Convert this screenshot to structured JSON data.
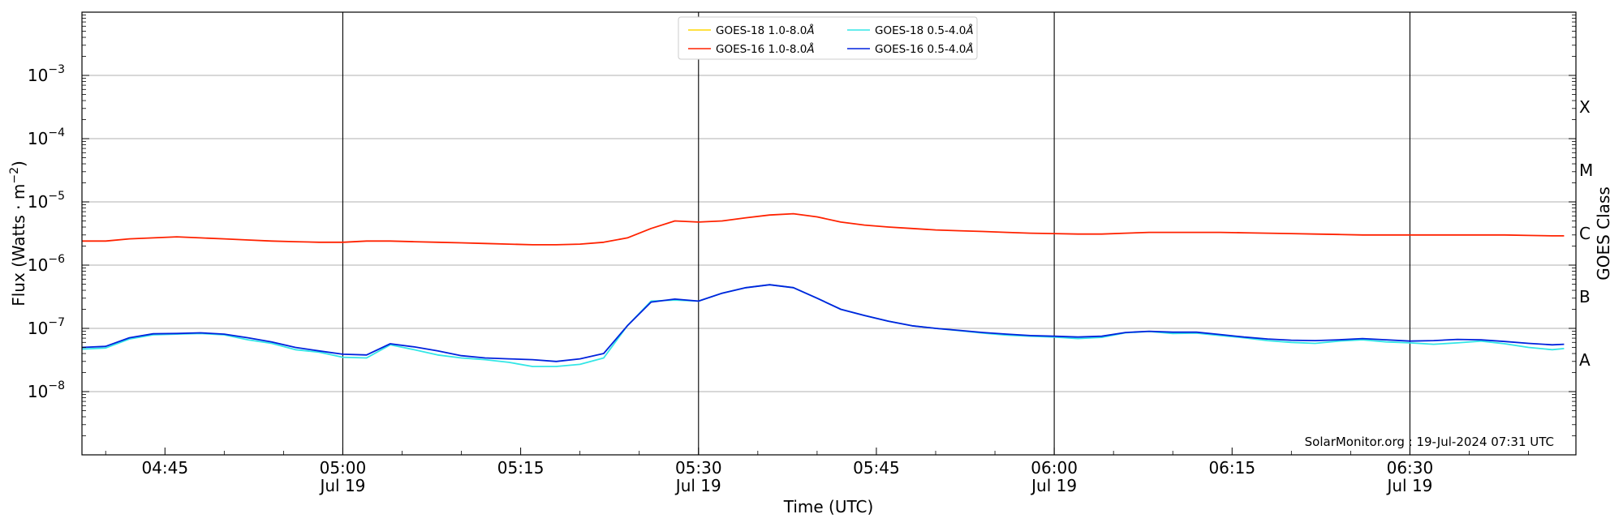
{
  "chart_data": {
    "type": "line",
    "ylabel_main": "Flux (Watts · m",
    "ylabel_sup": "−2",
    "ylabel_close": ")",
    "xlabel": "Time (UTC)",
    "right_label": "GOES Class",
    "y_scale": "log",
    "ylim": [
      1e-09,
      0.01
    ],
    "y_ticks": [
      {
        "value": 1e-08,
        "base": "10",
        "exp": "−8"
      },
      {
        "value": 1e-07,
        "base": "10",
        "exp": "−7"
      },
      {
        "value": 1e-06,
        "base": "10",
        "exp": "−6"
      },
      {
        "value": 1e-05,
        "base": "10",
        "exp": "−5"
      },
      {
        "value": 0.0001,
        "base": "10",
        "exp": "−4"
      },
      {
        "value": 0.001,
        "base": "10",
        "exp": "−3"
      }
    ],
    "xlim": [
      "04:38",
      "06:44"
    ],
    "x_ticks": [
      {
        "time": "04:45",
        "label": "04:45",
        "date": ""
      },
      {
        "time": "05:00",
        "label": "05:00",
        "date": "Jul 19"
      },
      {
        "time": "05:15",
        "label": "05:15",
        "date": ""
      },
      {
        "time": "05:30",
        "label": "05:30",
        "date": "Jul 19"
      },
      {
        "time": "05:45",
        "label": "05:45",
        "date": ""
      },
      {
        "time": "06:00",
        "label": "06:00",
        "date": "Jul 19"
      },
      {
        "time": "06:15",
        "label": "06:15",
        "date": ""
      },
      {
        "time": "06:30",
        "label": "06:30",
        "date": "Jul 19"
      }
    ],
    "vertical_lines": [
      "05:00",
      "05:30",
      "06:00",
      "06:30"
    ],
    "goes_classes": [
      {
        "label": "A",
        "value": 3.16e-08
      },
      {
        "label": "B",
        "value": 3.16e-07
      },
      {
        "label": "C",
        "value": 3.16e-06
      },
      {
        "label": "M",
        "value": 3.16e-05
      },
      {
        "label": "X",
        "value": 0.000316
      }
    ],
    "grid": "horizontal",
    "legend_position": "top-center",
    "annotation": "SolarMonitor.org : 19-Jul-2024 07:31 UTC",
    "series": [
      {
        "name": "GOES-18 1.0-8.0",
        "unit": "Å",
        "color": "#ffd700",
        "x": [],
        "y": []
      },
      {
        "name": "GOES-18 0.5-4.0",
        "unit": "Å",
        "color": "#33e6e6",
        "x": [
          "04:38",
          "04:40",
          "04:42",
          "04:44",
          "04:46",
          "04:48",
          "04:50",
          "04:52",
          "04:54",
          "04:56",
          "04:58",
          "05:00",
          "05:02",
          "05:04",
          "05:06",
          "05:08",
          "05:10",
          "05:12",
          "05:14",
          "05:16",
          "05:18",
          "05:20",
          "05:22",
          "05:24",
          "05:26",
          "05:28",
          "05:30",
          "05:32",
          "05:34",
          "05:36",
          "05:38",
          "05:40",
          "05:42",
          "05:44",
          "05:46",
          "05:48",
          "05:50",
          "05:52",
          "05:54",
          "05:56",
          "05:58",
          "06:00",
          "06:02",
          "06:04",
          "06:06",
          "06:08",
          "06:10",
          "06:12",
          "06:14",
          "06:16",
          "06:18",
          "06:20",
          "06:22",
          "06:24",
          "06:26",
          "06:28",
          "06:30",
          "06:32",
          "06:34",
          "06:36",
          "06:38",
          "06:40",
          "06:42",
          "06:43"
        ],
        "y": [
          4.7e-08,
          4.9e-08,
          6.8e-08,
          7.9e-08,
          8.1e-08,
          8.3e-08,
          7.9e-08,
          6.6e-08,
          5.8e-08,
          4.6e-08,
          4.2e-08,
          3.5e-08,
          3.4e-08,
          5.5e-08,
          4.6e-08,
          3.8e-08,
          3.4e-08,
          3.2e-08,
          2.9e-08,
          2.5e-08,
          2.5e-08,
          2.7e-08,
          3.4e-08,
          1.1e-07,
          2.7e-07,
          2.8e-07,
          2.7e-07,
          3.6e-07,
          4.4e-07,
          4.9e-07,
          4.4e-07,
          3e-07,
          2e-07,
          1.6e-07,
          1.3e-07,
          1.1e-07,
          1e-07,
          9.2e-08,
          8.4e-08,
          7.8e-08,
          7.5e-08,
          7.3e-08,
          6.9e-08,
          7.2e-08,
          8.5e-08,
          8.9e-08,
          8.3e-08,
          8.4e-08,
          7.7e-08,
          7.1e-08,
          6.4e-08,
          6e-08,
          5.8e-08,
          6.3e-08,
          6.6e-08,
          6.1e-08,
          5.9e-08,
          5.6e-08,
          5.9e-08,
          6.3e-08,
          5.7e-08,
          5e-08,
          4.6e-08,
          4.8e-08
        ]
      },
      {
        "name": "GOES-16 1.0-8.0",
        "unit": "Å",
        "color": "#ff2200",
        "x": [
          "04:38",
          "04:40",
          "04:42",
          "04:44",
          "04:46",
          "04:48",
          "04:50",
          "04:52",
          "04:54",
          "04:56",
          "04:58",
          "05:00",
          "05:02",
          "05:04",
          "05:06",
          "05:08",
          "05:10",
          "05:12",
          "05:14",
          "05:16",
          "05:18",
          "05:20",
          "05:22",
          "05:24",
          "05:26",
          "05:28",
          "05:30",
          "05:32",
          "05:34",
          "05:36",
          "05:38",
          "05:40",
          "05:42",
          "05:44",
          "05:46",
          "05:48",
          "05:50",
          "05:52",
          "05:54",
          "05:56",
          "05:58",
          "06:00",
          "06:02",
          "06:04",
          "06:06",
          "06:08",
          "06:10",
          "06:12",
          "06:14",
          "06:16",
          "06:18",
          "06:20",
          "06:22",
          "06:24",
          "06:26",
          "06:28",
          "06:30",
          "06:32",
          "06:34",
          "06:36",
          "06:38",
          "06:40",
          "06:42",
          "06:43"
        ],
        "y": [
          2.4e-06,
          2.4e-06,
          2.6e-06,
          2.7e-06,
          2.8e-06,
          2.7e-06,
          2.6e-06,
          2.5e-06,
          2.4e-06,
          2.35e-06,
          2.3e-06,
          2.3e-06,
          2.4e-06,
          2.4e-06,
          2.35e-06,
          2.3e-06,
          2.25e-06,
          2.2e-06,
          2.15e-06,
          2.1e-06,
          2.1e-06,
          2.15e-06,
          2.3e-06,
          2.7e-06,
          3.8e-06,
          5e-06,
          4.8e-06,
          5e-06,
          5.6e-06,
          6.2e-06,
          6.5e-06,
          5.8e-06,
          4.8e-06,
          4.3e-06,
          4e-06,
          3.8e-06,
          3.6e-06,
          3.5e-06,
          3.4e-06,
          3.3e-06,
          3.2e-06,
          3.15e-06,
          3.1e-06,
          3.1e-06,
          3.2e-06,
          3.3e-06,
          3.3e-06,
          3.3e-06,
          3.3e-06,
          3.25e-06,
          3.2e-06,
          3.15e-06,
          3.1e-06,
          3.05e-06,
          3e-06,
          3e-06,
          3e-06,
          3e-06,
          3e-06,
          3e-06,
          3e-06,
          2.95e-06,
          2.9e-06,
          2.9e-06
        ]
      },
      {
        "name": "GOES-16 0.5-4.0",
        "unit": "Å",
        "color": "#0022dd",
        "x": [
          "04:38",
          "04:40",
          "04:42",
          "04:44",
          "04:46",
          "04:48",
          "04:50",
          "04:52",
          "04:54",
          "04:56",
          "04:58",
          "05:00",
          "05:02",
          "05:04",
          "05:06",
          "05:08",
          "05:10",
          "05:12",
          "05:14",
          "05:16",
          "05:18",
          "05:20",
          "05:22",
          "05:24",
          "05:26",
          "05:28",
          "05:30",
          "05:32",
          "05:34",
          "05:36",
          "05:38",
          "05:40",
          "05:42",
          "05:44",
          "05:46",
          "05:48",
          "05:50",
          "05:52",
          "05:54",
          "05:56",
          "05:58",
          "06:00",
          "06:02",
          "06:04",
          "06:06",
          "06:08",
          "06:10",
          "06:12",
          "06:14",
          "06:16",
          "06:18",
          "06:20",
          "06:22",
          "06:24",
          "06:26",
          "06:28",
          "06:30",
          "06:32",
          "06:34",
          "06:36",
          "06:38",
          "06:40",
          "06:42",
          "06:43"
        ],
        "y": [
          5e-08,
          5.2e-08,
          7.1e-08,
          8.2e-08,
          8.3e-08,
          8.5e-08,
          8.1e-08,
          7.1e-08,
          6.1e-08,
          5e-08,
          4.4e-08,
          3.9e-08,
          3.8e-08,
          5.7e-08,
          5.1e-08,
          4.4e-08,
          3.7e-08,
          3.4e-08,
          3.3e-08,
          3.2e-08,
          3e-08,
          3.3e-08,
          4e-08,
          1.1e-07,
          2.6e-07,
          2.9e-07,
          2.7e-07,
          3.6e-07,
          4.4e-07,
          4.9e-07,
          4.4e-07,
          3e-07,
          2e-07,
          1.6e-07,
          1.3e-07,
          1.1e-07,
          1e-07,
          9.3e-08,
          8.6e-08,
          8.1e-08,
          7.7e-08,
          7.5e-08,
          7.3e-08,
          7.5e-08,
          8.6e-08,
          9e-08,
          8.7e-08,
          8.7e-08,
          8e-08,
          7.3e-08,
          6.8e-08,
          6.5e-08,
          6.4e-08,
          6.6e-08,
          6.9e-08,
          6.6e-08,
          6.3e-08,
          6.4e-08,
          6.7e-08,
          6.6e-08,
          6.2e-08,
          5.8e-08,
          5.5e-08,
          5.6e-08
        ]
      }
    ]
  }
}
